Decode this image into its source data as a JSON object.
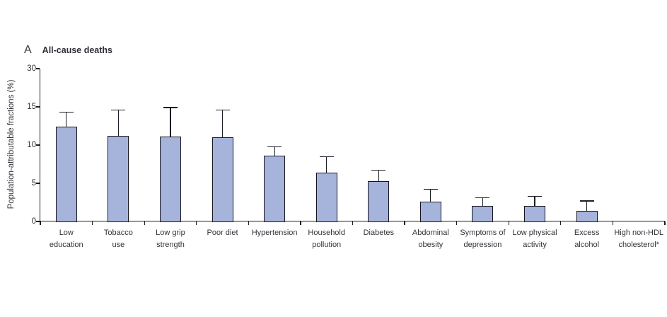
{
  "panel": {
    "letter": "A",
    "title": "All-cause deaths"
  },
  "chart_data": {
    "type": "bar",
    "title": "All-cause deaths",
    "panel_letter": "A",
    "xlabel": "",
    "ylabel": "Population-attributable fractions (%)",
    "y_ticks": [
      0,
      5,
      10,
      15,
      30
    ],
    "axis_note": "y-axis compressed above 15 (ticks 0,5,10,15,30 equally spaced)",
    "legend_position": "none",
    "grid": false,
    "categories": [
      "Low\neducation",
      "Tobacco\nuse",
      "Low grip\nstrength",
      "Poor diet",
      "Hypertension",
      "Household\npollution",
      "Diabetes",
      "Abdominal\nobesity",
      "Symptoms of\ndepression",
      "Low physical\nactivity",
      "Excess\nalcohol",
      "High non-HDL\ncholesterol*"
    ],
    "values": [
      12.4,
      11.2,
      11.1,
      11.0,
      8.6,
      6.4,
      5.3,
      2.6,
      2.0,
      2.0,
      1.4,
      0
    ],
    "ci_upper": [
      14.3,
      14.6,
      14.9,
      14.6,
      9.8,
      8.5,
      6.7,
      4.2,
      3.1,
      3.3,
      2.7,
      null
    ],
    "bar_fill": "#a6b4db",
    "bar_stroke": "#15151f",
    "axis_color": "#1c1c26",
    "text_color": "#32323a"
  }
}
